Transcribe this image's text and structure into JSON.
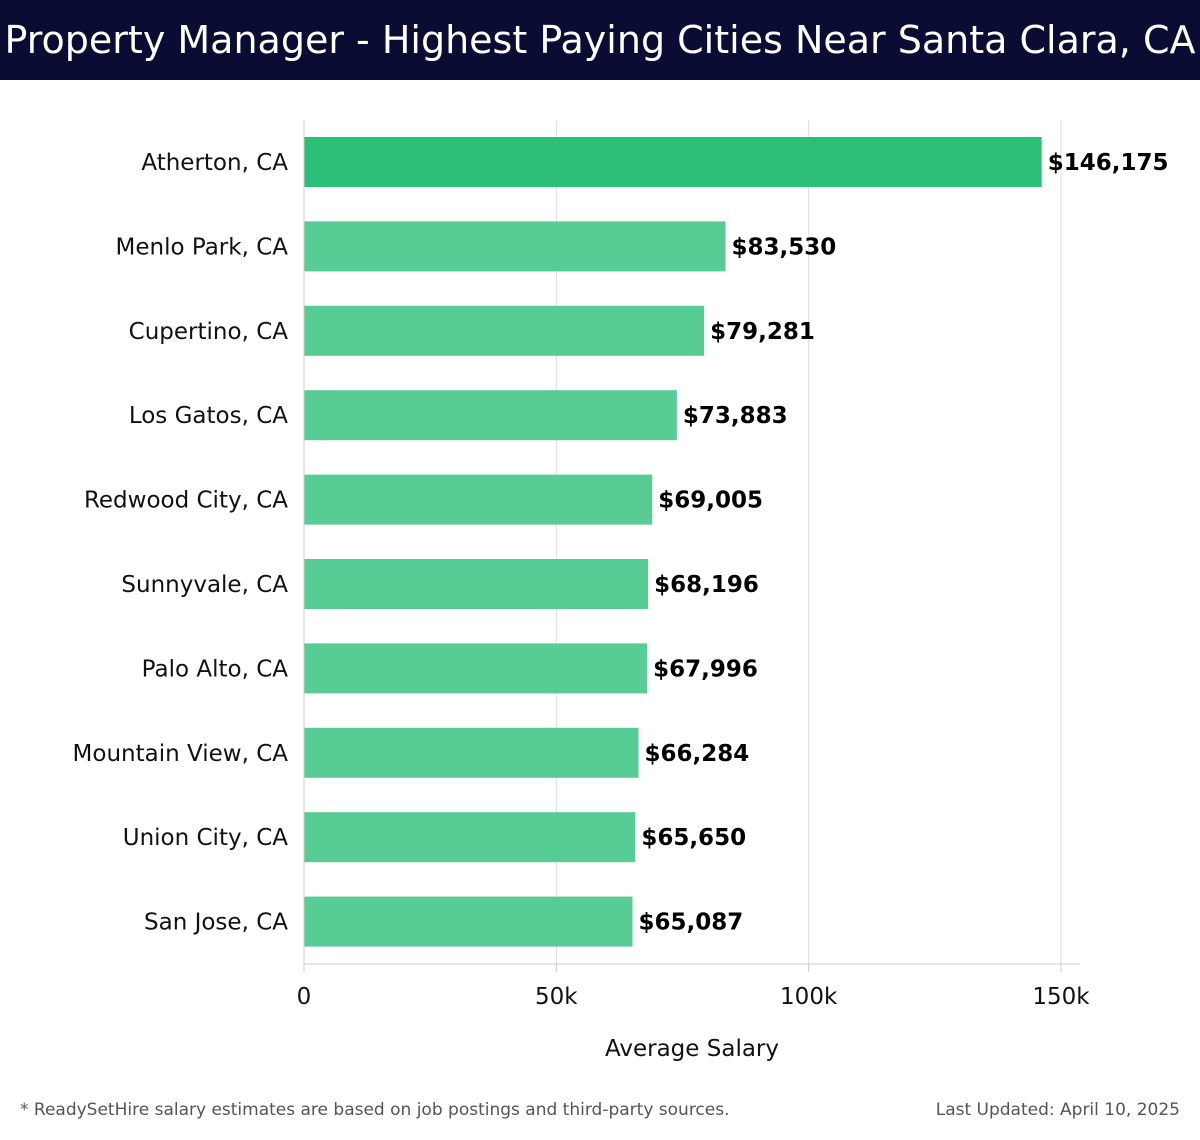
{
  "header": {
    "title": "Property Manager - Highest Paying Cities Near Santa Clara, CA"
  },
  "colors": {
    "header_bg": "#0b0c33",
    "bar_top": "#2dbf78",
    "bar_default": "#57cc95",
    "grid": "#dddddd"
  },
  "chart_data": {
    "type": "bar",
    "orientation": "horizontal",
    "title": "Property Manager - Highest Paying Cities Near Santa Clara, CA",
    "categories": [
      "Atherton, CA",
      "Menlo Park, CA",
      "Cupertino, CA",
      "Los Gatos, CA",
      "Redwood City, CA",
      "Sunnyvale, CA",
      "Palo Alto, CA",
      "Mountain View, CA",
      "Union City, CA",
      "San Jose, CA"
    ],
    "values": [
      146175,
      83530,
      79281,
      73883,
      69005,
      68196,
      67996,
      66284,
      65650,
      65087
    ],
    "value_labels": [
      "$146,175",
      "$83,530",
      "$79,281",
      "$73,883",
      "$69,005",
      "$68,196",
      "$67,996",
      "$66,284",
      "$65,650",
      "$65,087"
    ],
    "xlabel": "Average Salary",
    "ylabel": "",
    "xlim": [
      0,
      150000
    ],
    "xticks": [
      0,
      50000,
      100000,
      150000
    ],
    "xtick_labels": [
      "0",
      "50k",
      "100k",
      "150k"
    ],
    "grid": true
  },
  "footer": {
    "note": "* ReadySetHire salary estimates are based on job postings and third-party sources.",
    "updated": "Last Updated: April 10, 2025"
  }
}
